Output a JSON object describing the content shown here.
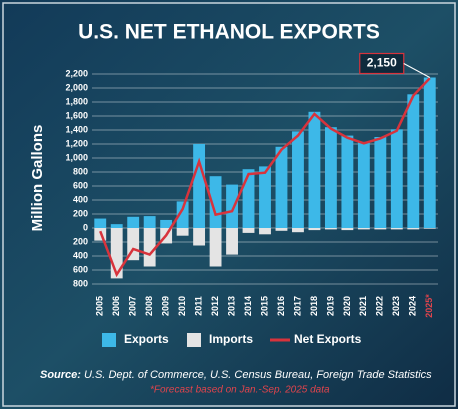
{
  "chart_data": {
    "type": "bar",
    "title": "U.S. NET ETHANOL EXPORTS",
    "y_label": "Million Gallons",
    "categories": [
      "2005",
      "2006",
      "2007",
      "2008",
      "2009",
      "2010",
      "2011",
      "2012",
      "2013",
      "2014",
      "2015",
      "2016",
      "2017",
      "2018",
      "2019",
      "2020",
      "2021",
      "2022",
      "2023",
      "2024",
      "2025*"
    ],
    "series": [
      {
        "name": "Exports",
        "color": "#3db8e8",
        "values": [
          135,
          55,
          160,
          170,
          115,
          380,
          1200,
          740,
          620,
          840,
          880,
          1160,
          1380,
          1660,
          1440,
          1320,
          1230,
          1300,
          1410,
          1910,
          2150
        ],
        "value_labels": [
          null,
          null,
          null,
          null,
          null,
          null,
          null,
          null,
          null,
          null,
          null,
          null,
          null,
          null,
          null,
          null,
          null,
          null,
          null,
          null,
          "2,150"
        ]
      },
      {
        "name": "Imports",
        "color": "#e4e4e4",
        "values": [
          -180,
          -720,
          -460,
          -550,
          -220,
          -110,
          -250,
          -550,
          -380,
          -70,
          -90,
          -40,
          -60,
          -30,
          -20,
          -30,
          -20,
          -20,
          -20,
          -20,
          -10
        ]
      },
      {
        "name": "Net Exports",
        "type": "line",
        "color": "#d8333c",
        "values": [
          -45,
          -665,
          -300,
          -380,
          -105,
          270,
          950,
          190,
          240,
          770,
          790,
          1120,
          1320,
          1630,
          1420,
          1290,
          1210,
          1280,
          1390,
          1890,
          2140
        ]
      }
    ],
    "ylim": [
      -800,
      2200
    ],
    "yticks": [
      {
        "value": 2200,
        "label": "2,200"
      },
      {
        "value": 2000,
        "label": "2,000"
      },
      {
        "value": 1800,
        "label": "1,800"
      },
      {
        "value": 1600,
        "label": "1,600"
      },
      {
        "value": 1400,
        "label": "1,400"
      },
      {
        "value": 1200,
        "label": "1,200"
      },
      {
        "value": 1000,
        "label": "1,000"
      },
      800,
      600,
      400,
      200,
      0,
      {
        "value": -200,
        "label": "200"
      },
      {
        "value": -400,
        "label": "400"
      },
      {
        "value": -600,
        "label": "600"
      },
      {
        "value": -800,
        "label": "800"
      }
    ],
    "grid": true,
    "source_label": "Source:",
    "source_text": "U.S. Dept. of Commerce, U.S. Census Bureau, Foreign Trade Statistics",
    "note": "*Forecast based on Jan.-Sep. 2025 data"
  }
}
